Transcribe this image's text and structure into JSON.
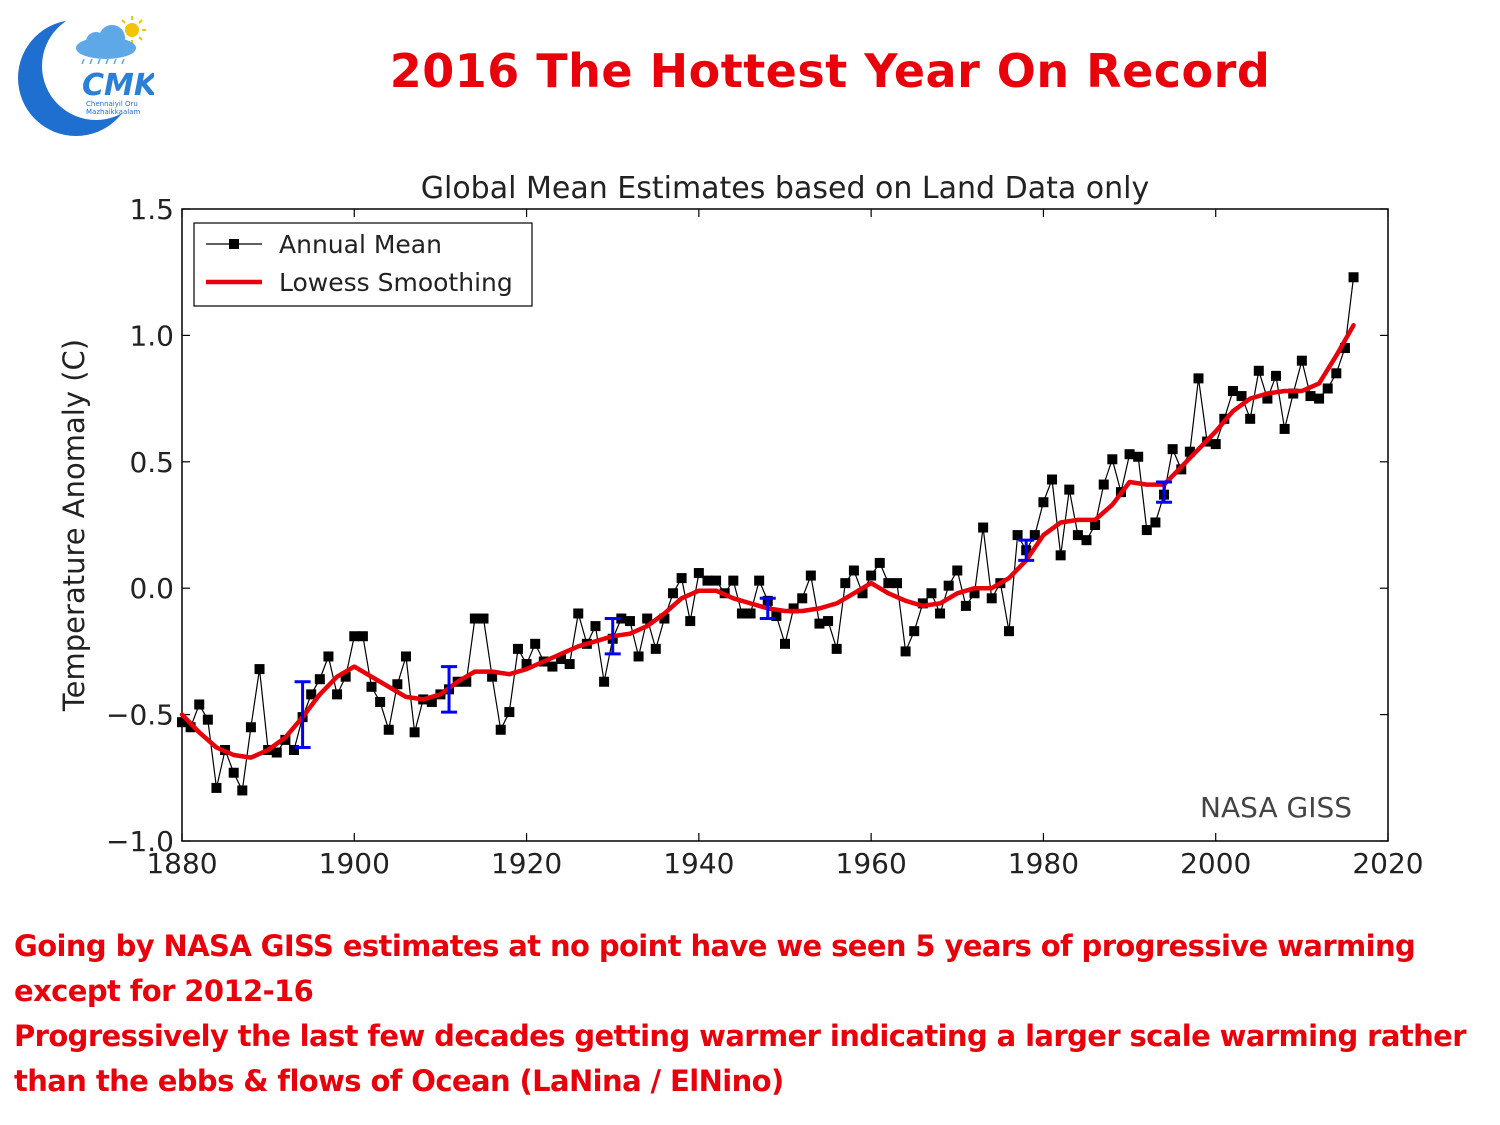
{
  "headline": "2016 The Hottest Year On Record",
  "logo": {
    "text": "CMK",
    "tagline_1": "Chennaiyil Oru",
    "tagline_2": "Mazhaikkaalam",
    "colors": {
      "moon": "#1f6fd1",
      "cloud": "#5fa8e8",
      "sun": "#f5c400",
      "text": "#2a7fd6"
    }
  },
  "notes": [
    "Going by NASA GISS estimates at no point have we seen 5 years of progressive warming",
    "except for 2012-16",
    "Progressively the last few decades getting warmer indicating a larger scale warming rather",
    "than the ebbs & flows of Ocean (LaNina / ElNino)"
  ],
  "colors": {
    "accent": "#e8000b",
    "series_annual": "#000000",
    "series_lowess": "#e8000b",
    "error_bars": "#0000ff"
  },
  "chart_data": {
    "type": "line",
    "title": "Global Mean Estimates based on Land Data only",
    "xlabel": "",
    "ylabel": "Temperature Anomaly (C)",
    "xlim": [
      1880,
      2020
    ],
    "ylim": [
      -1.0,
      1.5
    ],
    "x_ticks": [
      1880,
      1900,
      1920,
      1940,
      1960,
      1980,
      2000,
      2020
    ],
    "y_ticks": [
      1.5,
      1.0,
      0.5,
      0.0,
      -0.5,
      -1.0
    ],
    "y_tick_labels": [
      "1.5",
      "1.0",
      "0.5",
      "0.0",
      "−0.5",
      "−1.0"
    ],
    "grid": false,
    "legend_position": "top-left",
    "annotation": "NASA GISS",
    "series": [
      {
        "name": "Annual Mean",
        "style": "line-with-square-markers",
        "x": [
          1880,
          1881,
          1882,
          1883,
          1884,
          1885,
          1886,
          1887,
          1888,
          1889,
          1890,
          1891,
          1892,
          1893,
          1894,
          1895,
          1896,
          1897,
          1898,
          1899,
          1900,
          1901,
          1902,
          1903,
          1904,
          1905,
          1906,
          1907,
          1908,
          1909,
          1910,
          1911,
          1912,
          1913,
          1914,
          1915,
          1916,
          1917,
          1918,
          1919,
          1920,
          1921,
          1922,
          1923,
          1924,
          1925,
          1926,
          1927,
          1928,
          1929,
          1930,
          1931,
          1932,
          1933,
          1934,
          1935,
          1936,
          1937,
          1938,
          1939,
          1940,
          1941,
          1942,
          1943,
          1944,
          1945,
          1946,
          1947,
          1948,
          1949,
          1950,
          1951,
          1952,
          1953,
          1954,
          1955,
          1956,
          1957,
          1958,
          1959,
          1960,
          1961,
          1962,
          1963,
          1964,
          1965,
          1966,
          1967,
          1968,
          1969,
          1970,
          1971,
          1972,
          1973,
          1974,
          1975,
          1976,
          1977,
          1978,
          1979,
          1980,
          1981,
          1982,
          1983,
          1984,
          1985,
          1986,
          1987,
          1988,
          1989,
          1990,
          1991,
          1992,
          1993,
          1994,
          1995,
          1996,
          1997,
          1998,
          1999,
          2000,
          2001,
          2002,
          2003,
          2004,
          2005,
          2006,
          2007,
          2008,
          2009,
          2010,
          2011,
          2012,
          2013,
          2014,
          2015,
          2016
        ],
        "values": [
          -0.53,
          -0.55,
          -0.46,
          -0.52,
          -0.79,
          -0.64,
          -0.73,
          -0.8,
          -0.55,
          -0.32,
          -0.64,
          -0.65,
          -0.6,
          -0.64,
          -0.51,
          -0.42,
          -0.36,
          -0.27,
          -0.42,
          -0.35,
          -0.19,
          -0.19,
          -0.39,
          -0.45,
          -0.56,
          -0.38,
          -0.27,
          -0.57,
          -0.44,
          -0.45,
          -0.42,
          -0.4,
          -0.37,
          -0.37,
          -0.12,
          -0.12,
          -0.35,
          -0.56,
          -0.49,
          -0.24,
          -0.3,
          -0.22,
          -0.29,
          -0.31,
          -0.28,
          -0.3,
          -0.1,
          -0.22,
          -0.15,
          -0.37,
          -0.2,
          -0.12,
          -0.13,
          -0.27,
          -0.12,
          -0.24,
          -0.12,
          -0.02,
          0.04,
          -0.13,
          0.06,
          0.03,
          0.03,
          -0.02,
          0.03,
          -0.1,
          -0.1,
          0.03,
          -0.05,
          -0.11,
          -0.22,
          -0.08,
          -0.04,
          0.05,
          -0.14,
          -0.13,
          -0.24,
          0.02,
          0.07,
          -0.02,
          0.05,
          0.1,
          0.02,
          0.02,
          -0.25,
          -0.17,
          -0.06,
          -0.02,
          -0.1,
          0.01,
          0.07,
          -0.07,
          -0.02,
          0.24,
          -0.04,
          0.02,
          -0.17,
          0.21,
          0.15,
          0.21,
          0.34,
          0.43,
          0.13,
          0.39,
          0.21,
          0.19,
          0.25,
          0.41,
          0.51,
          0.38,
          0.53,
          0.52,
          0.23,
          0.26,
          0.37,
          0.55,
          0.47,
          0.54,
          0.83,
          0.58,
          0.57,
          0.67,
          0.78,
          0.76,
          0.67,
          0.86,
          0.75,
          0.84,
          0.63,
          0.77,
          0.9,
          0.76,
          0.75,
          0.79,
          0.85,
          0.95,
          1.23
        ]
      },
      {
        "name": "Lowess Smoothing",
        "style": "thick-line",
        "x": [
          1880,
          1882,
          1884,
          1886,
          1888,
          1890,
          1892,
          1894,
          1896,
          1898,
          1900,
          1902,
          1904,
          1906,
          1908,
          1910,
          1912,
          1914,
          1916,
          1918,
          1920,
          1922,
          1924,
          1926,
          1928,
          1930,
          1932,
          1934,
          1936,
          1938,
          1940,
          1942,
          1944,
          1946,
          1948,
          1950,
          1952,
          1954,
          1956,
          1958,
          1960,
          1962,
          1964,
          1966,
          1968,
          1970,
          1972,
          1974,
          1976,
          1978,
          1980,
          1982,
          1984,
          1986,
          1988,
          1990,
          1992,
          1994,
          1996,
          1998,
          2000,
          2002,
          2004,
          2006,
          2008,
          2010,
          2012,
          2014,
          2016
        ],
        "values": [
          -0.5,
          -0.57,
          -0.63,
          -0.66,
          -0.67,
          -0.64,
          -0.59,
          -0.51,
          -0.42,
          -0.35,
          -0.31,
          -0.35,
          -0.39,
          -0.43,
          -0.44,
          -0.42,
          -0.37,
          -0.33,
          -0.33,
          -0.34,
          -0.32,
          -0.29,
          -0.26,
          -0.23,
          -0.21,
          -0.19,
          -0.18,
          -0.15,
          -0.1,
          -0.04,
          -0.01,
          -0.01,
          -0.04,
          -0.06,
          -0.08,
          -0.09,
          -0.09,
          -0.08,
          -0.06,
          -0.02,
          0.02,
          -0.02,
          -0.05,
          -0.07,
          -0.06,
          -0.02,
          0.0,
          0.0,
          0.04,
          0.11,
          0.21,
          0.26,
          0.27,
          0.27,
          0.33,
          0.42,
          0.41,
          0.41,
          0.48,
          0.55,
          0.62,
          0.7,
          0.75,
          0.77,
          0.78,
          0.78,
          0.81,
          0.92,
          1.04
        ]
      }
    ],
    "error_bars": [
      {
        "x": 1894,
        "low": -0.63,
        "high": -0.37
      },
      {
        "x": 1911,
        "low": -0.49,
        "high": -0.31
      },
      {
        "x": 1930,
        "low": -0.26,
        "high": -0.12
      },
      {
        "x": 1948,
        "low": -0.12,
        "high": -0.04
      },
      {
        "x": 1978,
        "low": 0.11,
        "high": 0.19
      },
      {
        "x": 1994,
        "low": 0.34,
        "high": 0.42
      }
    ]
  }
}
